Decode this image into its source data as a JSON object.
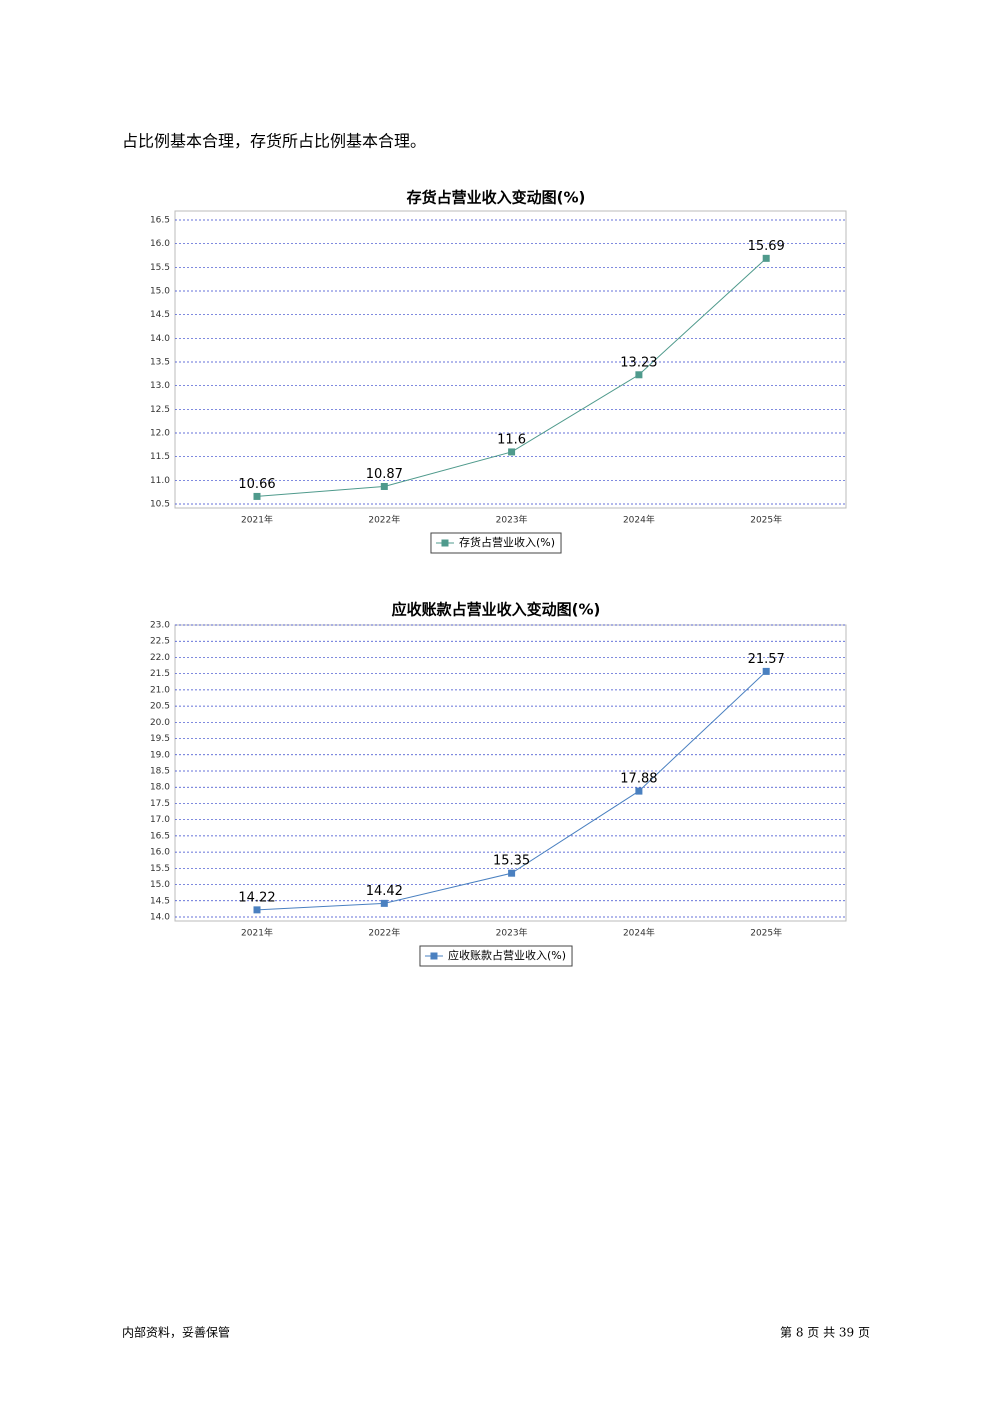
{
  "body": {
    "text": "占比例基本合理，存货所占比例基本合理。"
  },
  "chart_data": [
    {
      "type": "line",
      "title": "存货占营业收入变动图(%)",
      "categories": [
        "2021年",
        "2022年",
        "2023年",
        "2024年",
        "2025年"
      ],
      "series": [
        {
          "name": "存货占营业收入(%)",
          "color": "#4f9a8c",
          "values": [
            10.66,
            10.87,
            11.6,
            13.23,
            15.69
          ]
        }
      ],
      "ylim": [
        10.5,
        16.5
      ],
      "yticks": [
        10.5,
        {
          "value": 11,
          "label": "11.0"
        },
        11.5,
        {
          "value": 12,
          "label": "12.0"
        },
        12.5,
        {
          "value": 13,
          "label": "13.0"
        },
        13.5,
        {
          "value": 14,
          "label": "14.0"
        },
        14.5,
        {
          "value": 15,
          "label": "15.0"
        },
        15.5,
        {
          "value": 16,
          "label": "16.0"
        },
        16.5
      ],
      "grid": true,
      "legend": "bottom"
    },
    {
      "type": "line",
      "title": "应收账款占营业收入变动图(%)",
      "categories": [
        "2021年",
        "2022年",
        "2023年",
        "2024年",
        "2025年"
      ],
      "series": [
        {
          "name": "应收账款占营业收入(%)",
          "color": "#4a80c0",
          "values": [
            14.22,
            14.42,
            15.35,
            17.88,
            21.57
          ]
        }
      ],
      "ylim": [
        14,
        23
      ],
      "yticks": [
        {
          "value": 14,
          "label": "14.0"
        },
        14.5,
        {
          "value": 15,
          "label": "15.0"
        },
        15.5,
        {
          "value": 16,
          "label": "16.0"
        },
        16.5,
        {
          "value": 17,
          "label": "17.0"
        },
        17.5,
        {
          "value": 18,
          "label": "18.0"
        },
        18.5,
        {
          "value": 19,
          "label": "19.0"
        },
        19.5,
        {
          "value": 20,
          "label": "20.0"
        },
        20.5,
        {
          "value": 21,
          "label": "21.0"
        },
        21.5,
        {
          "value": 22,
          "label": "22.0"
        },
        22.5,
        {
          "value": 23,
          "label": "23.0"
        }
      ],
      "grid": true,
      "legend": "bottom"
    }
  ],
  "footer": {
    "left": "内部资料，妥善保管",
    "right": "第 8 页  共 39 页"
  }
}
